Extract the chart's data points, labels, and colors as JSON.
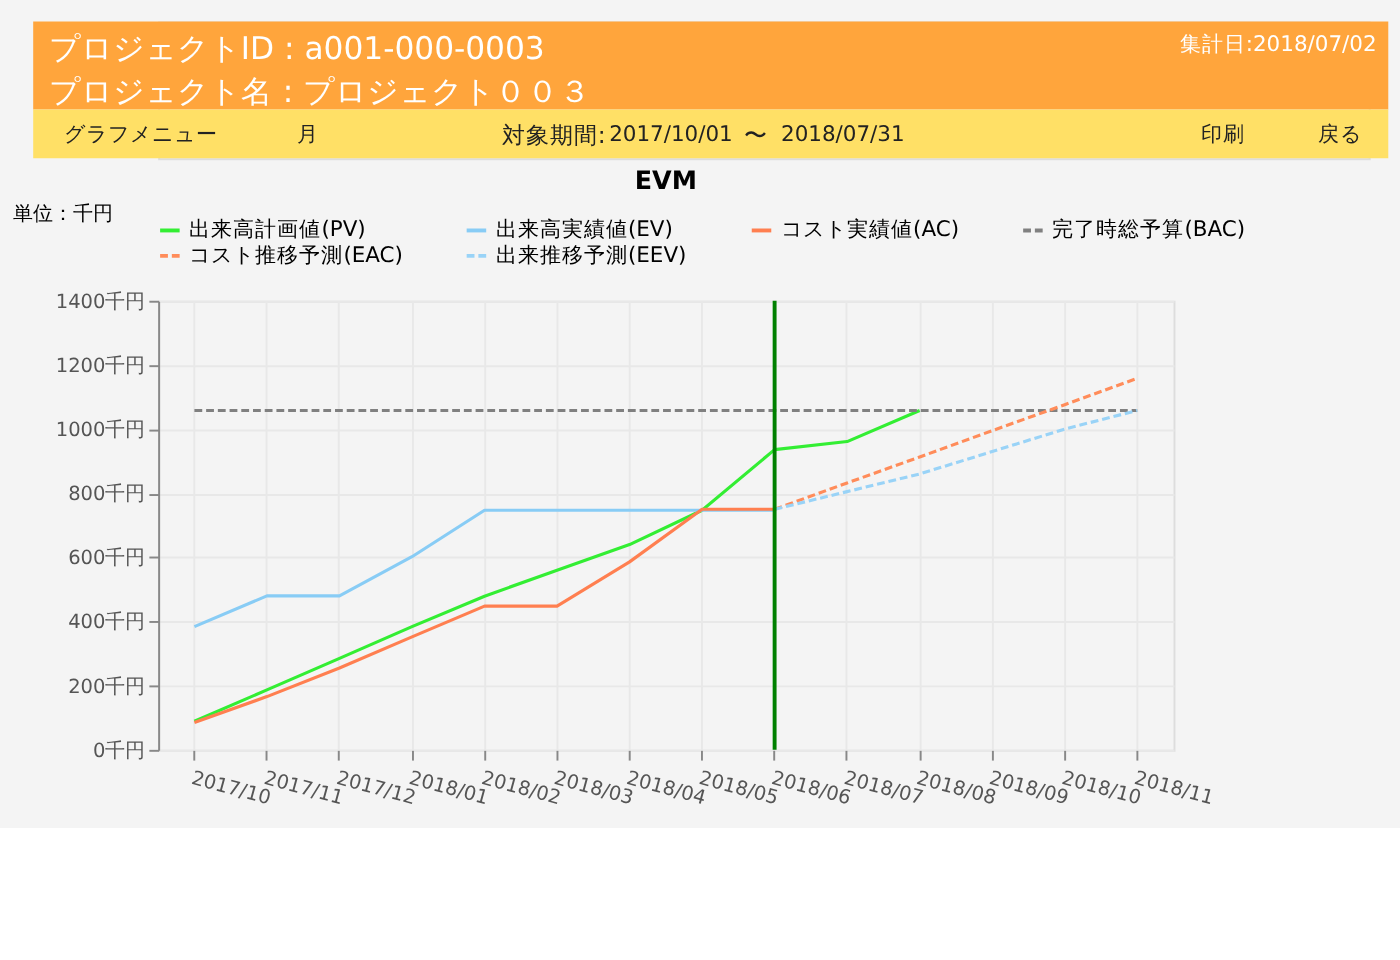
{
  "chart_data": {
    "type": "line",
    "title": "EVM",
    "ylabel": "単位：千円",
    "annotations": [
      "プロジェクトID : a001-000-0003",
      "プロジェクト名 : プロジェクト００３",
      "集計日:2018/07/02",
      "グラフメニュー",
      "月",
      "対象期間:",
      "2017/10/01",
      "〜",
      "2018/07/31",
      "印刷",
      "戻る"
    ],
    "categories": [
      "2017/10",
      "2017/11",
      "2017/12",
      "2018/01",
      "2018/02",
      "2018/03",
      "2018/04",
      "2018/05",
      "2018/06",
      "2018/07",
      "2018/08",
      "2018/09",
      "2018/10",
      "2018/11"
    ],
    "series": [
      {
        "name": "出来高計画値(PV)",
        "color": "#33ee33",
        "line_style": "solid",
        "values": [
          89,
          187,
          285,
          384,
          479,
          560,
          640,
          747,
          936,
          961,
          1058,
          null,
          null,
          null
        ]
      },
      {
        "name": "出来高実績値(EV)",
        "color": "#88ccf5",
        "line_style": "solid",
        "values": [
          384,
          480,
          480,
          602,
          747,
          747,
          747,
          747,
          747,
          null,
          null,
          null,
          null,
          null
        ]
      },
      {
        "name": "コスト実績値(AC)",
        "color": "#ff7f50",
        "line_style": "solid",
        "values": [
          85,
          166,
          255,
          352,
          448,
          448,
          586,
          750,
          750,
          null,
          null,
          null,
          null,
          null
        ]
      },
      {
        "name": "完了時総予算(BAC)",
        "color": "#808080",
        "line_style": "dashed",
        "values": [
          1058,
          1058,
          1058,
          1058,
          1058,
          1058,
          1058,
          1058,
          1058,
          1058,
          1058,
          1058,
          1058,
          1058
        ]
      },
      {
        "name": "コスト推移予測(EAC)",
        "color": "#ff8c5a",
        "line_style": "dashed",
        "values": [
          null,
          null,
          null,
          null,
          null,
          null,
          null,
          null,
          750,
          832,
          913,
          995,
          1076,
          1158
        ]
      },
      {
        "name": "出来推移予測(EEV)",
        "color": "#99d3f7",
        "line_style": "dashed",
        "values": [
          null,
          null,
          null,
          null,
          null,
          null,
          null,
          null,
          750,
          805,
          860,
          930,
          1000,
          1058
        ]
      }
    ],
    "ylim": [
      0,
      1400
    ],
    "yticks": [
      {
        "value": 0,
        "label": "0千円"
      },
      {
        "value": 200,
        "label": "200千円"
      },
      {
        "value": 400,
        "label": "400千円"
      },
      {
        "value": 600,
        "label": "600千円"
      },
      {
        "value": 800,
        "label": "800千円"
      },
      {
        "value": 1000,
        "label": "1000千円"
      },
      {
        "value": 1200,
        "label": "1200千円"
      },
      {
        "value": 1400,
        "label": "1400千円"
      }
    ],
    "ref_lines": [
      {
        "axis": "x",
        "value": "2018/06",
        "color": "#008000",
        "line_style": "solid"
      }
    ],
    "grid": true,
    "legend": "top",
    "marker": "none"
  }
}
